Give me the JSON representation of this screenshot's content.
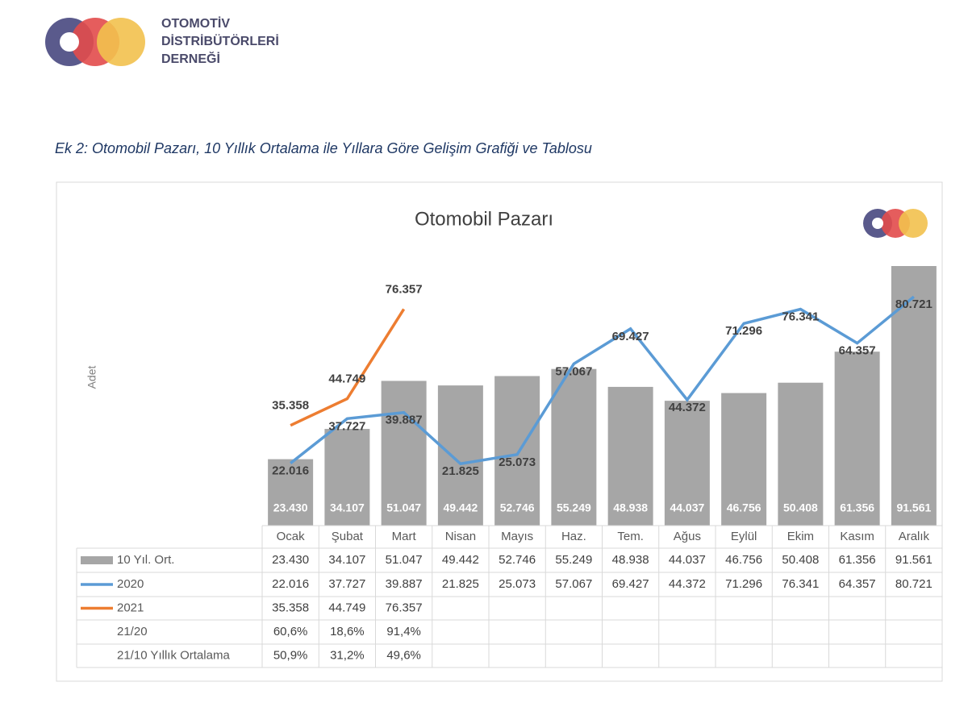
{
  "header": {
    "org_name": [
      "OTOMOTİV",
      "DİSTRİBÜTÖRLERİ",
      "DERNEĞİ"
    ]
  },
  "caption": "Ek 2: Otomobil Pazarı, 10 Yıllık Ortalama ile Yıllara Göre Gelişim Grafiği ve Tablosu",
  "chart_data": {
    "type": "combo",
    "title": "Otomobil Pazarı",
    "ylabel": "Adet",
    "categories": [
      "Ocak",
      "Şubat",
      "Mart",
      "Nisan",
      "Mayıs",
      "Haz.",
      "Tem.",
      "Ağus",
      "Eylül",
      "Ekim",
      "Kasım",
      "Aralık"
    ],
    "series": [
      {
        "name": "10 Yıl. Ort.",
        "type": "bar",
        "color": "#a6a6a6",
        "values": [
          23430,
          34107,
          51047,
          49442,
          52746,
          55249,
          48938,
          44037,
          46756,
          50408,
          61356,
          91561
        ],
        "value_labels": [
          "23.430",
          "34.107",
          "51.047",
          "49.442",
          "52.746",
          "55.249",
          "48.938",
          "44.037",
          "46.756",
          "50.408",
          "61.356",
          "91.561"
        ]
      },
      {
        "name": "2020",
        "type": "line",
        "color": "#5b9bd5",
        "values": [
          22016,
          37727,
          39887,
          21825,
          25073,
          57067,
          69427,
          44372,
          71296,
          76341,
          64357,
          80721
        ],
        "value_labels": [
          "22.016",
          "37.727",
          "39.887",
          "21.825",
          "25.073",
          "57.067",
          "69.427",
          "44.372",
          "71.296",
          "76.341",
          "64.357",
          "80.721"
        ]
      },
      {
        "name": "2021",
        "type": "line",
        "color": "#ed7d31",
        "values": [
          35358,
          44749,
          76357,
          null,
          null,
          null,
          null,
          null,
          null,
          null,
          null,
          null
        ],
        "value_labels": [
          "35.358",
          "44.749",
          "76.357",
          null,
          null,
          null,
          null,
          null,
          null,
          null,
          null,
          null
        ]
      }
    ],
    "table_rows": [
      {
        "name": "21/20",
        "values": [
          60.6,
          18.6,
          91.4,
          null,
          null,
          null,
          null,
          null,
          null,
          null,
          null,
          null
        ],
        "value_labels": [
          "60,6%",
          "18,6%",
          "91,4%",
          null,
          null,
          null,
          null,
          null,
          null,
          null,
          null,
          null
        ]
      },
      {
        "name": "21/10 Yıllık Ortalama",
        "values": [
          50.9,
          31.2,
          49.6,
          null,
          null,
          null,
          null,
          null,
          null,
          null,
          null,
          null
        ],
        "value_labels": [
          "50,9%",
          "31,2%",
          "49,6%",
          null,
          null,
          null,
          null,
          null,
          null,
          null,
          null,
          null
        ]
      }
    ]
  }
}
